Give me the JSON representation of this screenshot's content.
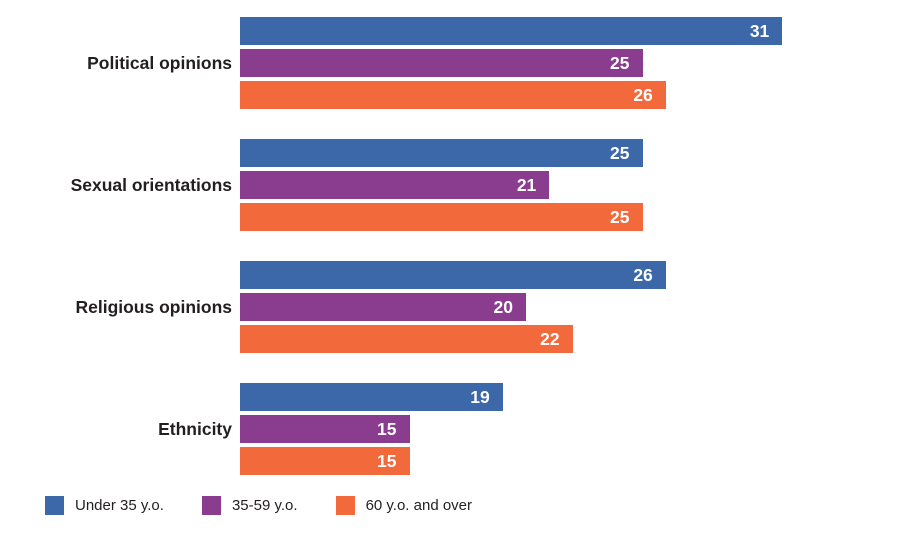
{
  "chart_data": {
    "type": "bar",
    "orientation": "horizontal",
    "title": "",
    "xlabel": "",
    "ylabel": "",
    "grid": false,
    "value_labels": "inside-end-white-bold",
    "legend_position": "bottom-left",
    "categories": [
      "Political opinions",
      "Sexual orientations",
      "Religious opinions",
      "Ethnicity"
    ],
    "series": [
      {
        "name": "Under 35 y.o.",
        "color": "#3c67a8",
        "values": [
          31,
          25,
          26,
          19
        ]
      },
      {
        "name": "35-59 y.o.",
        "color": "#8a3c8f",
        "values": [
          25,
          21,
          20,
          15
        ]
      },
      {
        "name": "60 y.o. and over",
        "color": "#f2693b",
        "values": [
          26,
          25,
          22,
          15
        ]
      }
    ]
  },
  "colors": {
    "background": "#ffffff",
    "category_label": "#231f20",
    "value_label": "#ffffff",
    "legend_text": "#231f20"
  }
}
